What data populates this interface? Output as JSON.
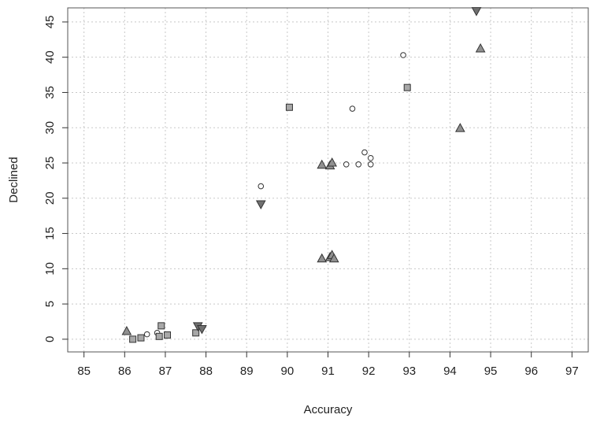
{
  "chart_data": {
    "type": "scatter",
    "title": "",
    "xlabel": "Accuracy",
    "ylabel": "Declined",
    "xlim": [
      84.6,
      97.4
    ],
    "ylim": [
      -1.8,
      47
    ],
    "xticks": [
      "85",
      "86",
      "87",
      "88",
      "89",
      "90",
      "91",
      "92",
      "93",
      "94",
      "95",
      "96",
      "97"
    ],
    "yticks": [
      "0",
      "5",
      "10",
      "15",
      "20",
      "25",
      "30",
      "35",
      "40",
      "45"
    ],
    "grid": true,
    "legend": "none",
    "series": [
      {
        "marker": "circle",
        "fill": "#ffffff",
        "points": [
          [
            86.55,
            0.7
          ],
          [
            86.8,
            0.9
          ],
          [
            89.35,
            21.7
          ],
          [
            91.45,
            24.8
          ],
          [
            91.6,
            32.7
          ],
          [
            91.75,
            24.8
          ],
          [
            91.9,
            26.5
          ],
          [
            92.05,
            24.8
          ],
          [
            92.05,
            25.7
          ],
          [
            92.85,
            40.3
          ]
        ]
      },
      {
        "marker": "square",
        "fill": "#a8a8a8",
        "points": [
          [
            86.2,
            0.0
          ],
          [
            86.4,
            0.2
          ],
          [
            86.85,
            0.4
          ],
          [
            86.9,
            1.9
          ],
          [
            87.05,
            0.6
          ],
          [
            87.75,
            0.9
          ],
          [
            90.05,
            32.9
          ],
          [
            92.95,
            35.7
          ]
        ]
      },
      {
        "marker": "triangle-up",
        "fill": "#909090",
        "points": [
          [
            86.05,
            1.1
          ],
          [
            90.85,
            24.7
          ],
          [
            91.05,
            24.6
          ],
          [
            91.1,
            25.0
          ],
          [
            90.85,
            11.4
          ],
          [
            91.05,
            11.6
          ],
          [
            91.1,
            11.9
          ],
          [
            91.15,
            11.4
          ],
          [
            94.25,
            29.9
          ],
          [
            94.75,
            41.2
          ]
        ]
      },
      {
        "marker": "triangle-down",
        "fill": "#707070",
        "points": [
          [
            87.8,
            1.9
          ],
          [
            87.9,
            1.5
          ],
          [
            89.35,
            19.2
          ],
          [
            94.65,
            46.6
          ]
        ]
      }
    ]
  }
}
